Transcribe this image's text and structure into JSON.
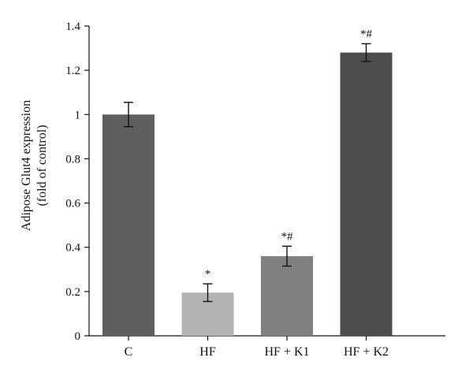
{
  "chart_data": {
    "type": "bar",
    "categories": [
      "C",
      "HF",
      "HF + K1",
      "HF + K2"
    ],
    "values": [
      1.0,
      0.195,
      0.36,
      1.28
    ],
    "errors": [
      0.055,
      0.04,
      0.045,
      0.04
    ],
    "annotations": [
      "",
      "*",
      "*#",
      "*#"
    ],
    "bar_colors": [
      "#5f5f5f",
      "#b3b3b3",
      "#808080",
      "#4d4d4d"
    ],
    "ylabel": [
      "Adipose Glut4 expression",
      "(fold of control)"
    ],
    "xlabel": "",
    "ylim": [
      0,
      1.4
    ],
    "yticks": [
      0,
      0.2,
      0.4,
      0.6,
      0.8,
      1,
      1.2,
      1.4
    ],
    "ytick_labels": [
      "0",
      "0.2",
      "0.4",
      "0.6",
      "0.8",
      "1",
      "1.2",
      "1.4"
    ],
    "grid": false,
    "legend": null
  }
}
